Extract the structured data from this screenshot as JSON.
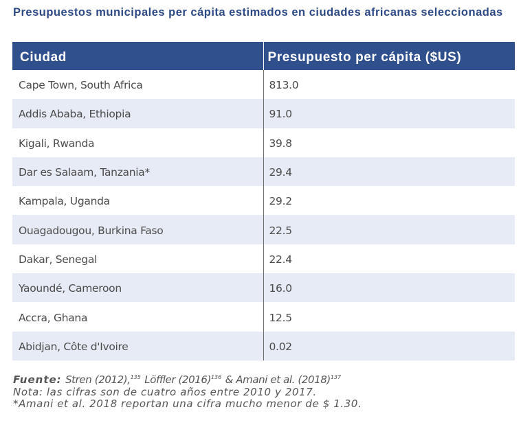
{
  "title": "Presupuestos municipales per cápita estimados en ciudades africanas seleccionadas",
  "table": {
    "headers": [
      "Ciudad",
      "Presupuesto per cápita ($US)"
    ],
    "rows": [
      {
        "city": "Cape Town, South Africa",
        "value": "813.0"
      },
      {
        "city": "Addis Ababa, Ethiopia",
        "value": "91.0"
      },
      {
        "city": "Kigali, Rwanda",
        "value": "39.8"
      },
      {
        "city": "Dar es Salaam, Tanzania*",
        "value": "29.4"
      },
      {
        "city": "Kampala, Uganda",
        "value": "29.2"
      },
      {
        "city": "Ouagadougou, Burkina Faso",
        "value": "22.5"
      },
      {
        "city": "Dakar, Senegal",
        "value": "22.4"
      },
      {
        "city": "Yaoundé, Cameroon",
        "value": "16.0"
      },
      {
        "city": "Accra, Ghana",
        "value": "12.5"
      },
      {
        "city": "Abidjan, Côte d'Ivoire",
        "value": "0.02"
      }
    ]
  },
  "notes": {
    "source_label": "Fuente:",
    "sources": [
      {
        "text": "Stren (2012),",
        "sup": "135"
      },
      {
        "text": "Löffler (2016)",
        "sup": "136"
      },
      {
        "text": "& Amani et al. (2018)",
        "sup": "137"
      }
    ],
    "note": "Nota: las cifras son de cuatro años entre 2010 y 2017.",
    "footnote": "*Amani et al. 2018 reportan una cifra mucho menor de $ 1.30."
  },
  "colors": {
    "title": "#2e4a86",
    "header_bg": "#2f4f8d",
    "stripe": "#e7ebf5"
  }
}
